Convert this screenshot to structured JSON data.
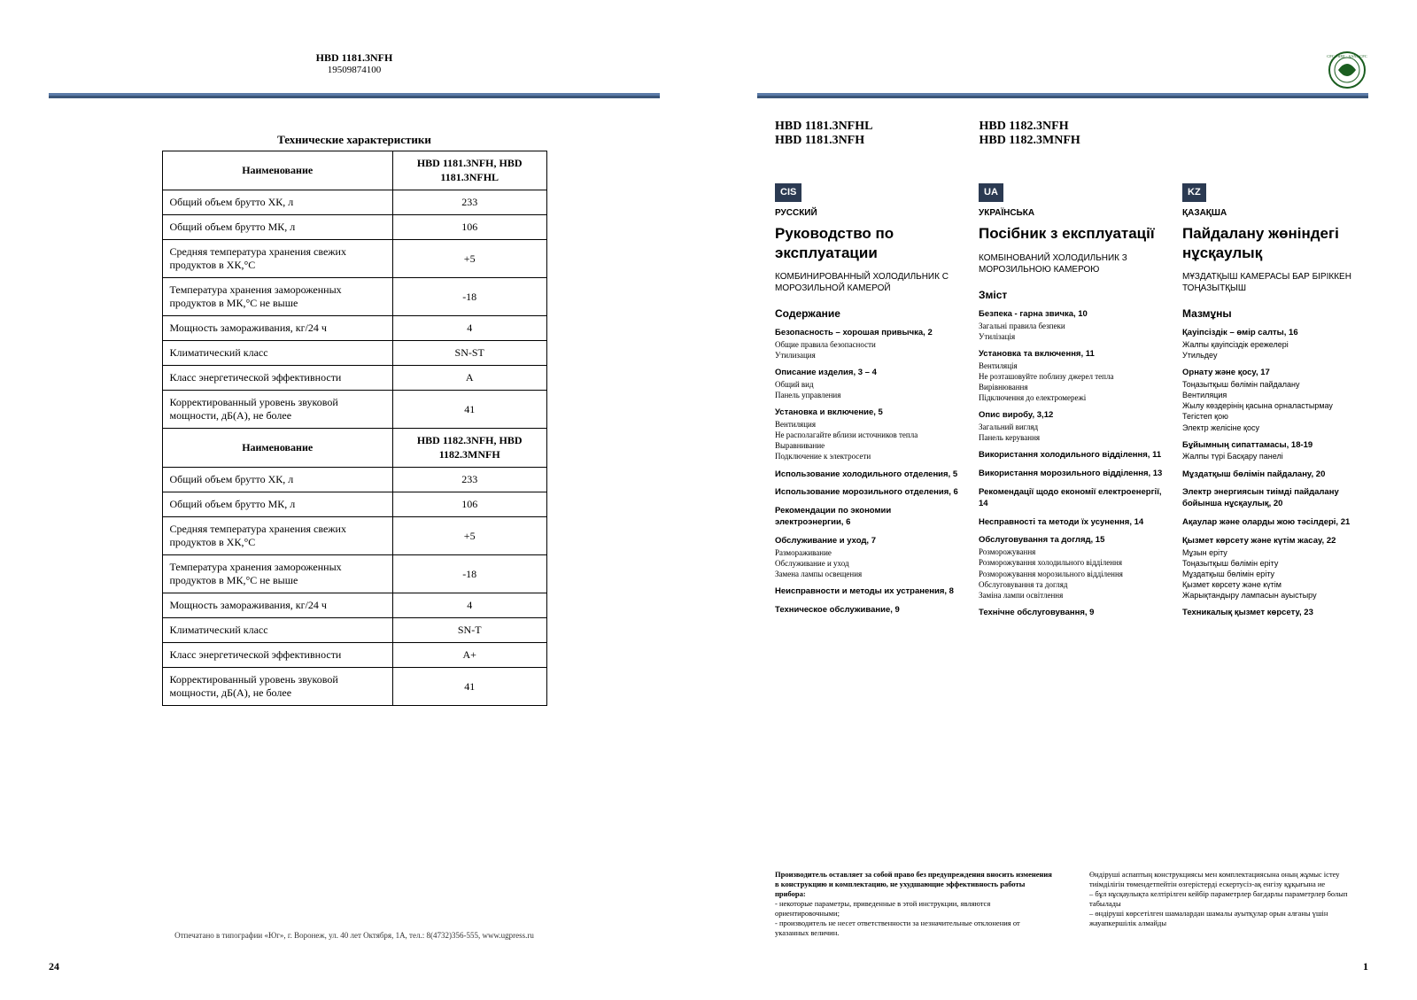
{
  "left": {
    "header_model": "HBD 1181.3NFH",
    "header_code": "19509874100",
    "spec_title": "Технические характеристики",
    "col_name": "Наименование",
    "model1": "HBD 1181.3NFH,\nHBD 1181.3NFHL",
    "model2": "HBD 1182.3NFH,\nHBD 1182.3MNFH",
    "rows1": [
      {
        "label": "Общий объем брутто ХК, л",
        "val": "233"
      },
      {
        "label": "Общий объем брутто МК, л",
        "val": "106"
      },
      {
        "label": "Средняя температура хранения свежих продуктов в ХК,°С",
        "val": "+5"
      },
      {
        "label": "Температура хранения замороженных продуктов в МК,°С не выше",
        "val": "-18"
      },
      {
        "label": "Мощность замораживания, кг/24 ч",
        "val": "4"
      },
      {
        "label": "Климатический класс",
        "val": "SN-ST"
      },
      {
        "label": "Класс энергетической эффективности",
        "val": "A"
      },
      {
        "label": "Корректированный уровень звуковой мощности, дБ(А), не более",
        "val": "41"
      }
    ],
    "rows2": [
      {
        "label": "Общий объем брутто ХК, л",
        "val": "233"
      },
      {
        "label": "Общий объем брутто МК, л",
        "val": "106"
      },
      {
        "label": "Средняя температура хранения свежих продуктов в ХК,°С",
        "val": "+5"
      },
      {
        "label": "Температура хранения замороженных продуктов в МК,°С не выше",
        "val": "-18"
      },
      {
        "label": "Мощность замораживания, кг/24 ч",
        "val": "4"
      },
      {
        "label": "Климатический класс",
        "val": "SN-T"
      },
      {
        "label": "Класс энергетической эффективности",
        "val": "A+"
      },
      {
        "label": "Корректированный уровень звуковой мощности, дБ(А), не более",
        "val": "41"
      }
    ],
    "footnote": "Отпечатано в типографии «Юг», г. Воронеж, ул. 40 лет Октября, 1А, тел.: 8(4732)356-555, www.ugpress.ru",
    "pagenum": "24"
  },
  "right": {
    "title_left": "HBD 1181.3NFHL\nHBD 1181.3NFH",
    "title_right": "HBD 1182.3NFH\nHBD 1182.3MNFH",
    "langs": [
      {
        "code": "CIS",
        "name": "РУССКИЙ",
        "title": "Руководство по эксплуатации",
        "desc": "КОМБИНИРОВАННЫЙ ХОЛОДИЛЬНИК С МОРОЗИЛЬНОЙ КАМЕРОЙ",
        "toc_head": "Содержание",
        "sections": [
          {
            "title": "Безопасность – хорошая привычка, 2",
            "items": [
              "Общие правила безопасности",
              "Утилизация"
            ]
          },
          {
            "title": "Описание изделия, 3 – 4",
            "items": [
              "Общий вид",
              "Панель управления"
            ]
          },
          {
            "title": "Установка и включение, 5",
            "items": [
              "Вентиляция",
              "Не располагайте вблизи источников тепла",
              "Выравнивание",
              "Подключение к электросети"
            ]
          },
          {
            "title": "Использование холодильного отделения, 5",
            "items": []
          },
          {
            "title": "Использование морозильного отделения, 6",
            "items": []
          },
          {
            "title": "Рекомендации по экономии электроэнергии, 6",
            "items": []
          },
          {
            "title": "Обслуживание и уход, 7",
            "items": [
              "Размораживание",
              "Обслуживание и уход",
              "Замена лампы освещения"
            ]
          },
          {
            "title": "Неисправности и методы их устранения, 8",
            "items": []
          },
          {
            "title": "Техническое обслуживание, 9",
            "items": []
          }
        ]
      },
      {
        "code": "UA",
        "name": "УКРАЇНСЬКА",
        "title": "Посібник з експлуатації",
        "desc": "КОМБІНОВАНИЙ ХОЛОДИЛЬНИК З МОРОЗИЛЬНОЮ КАМЕРОЮ",
        "toc_head": "Зміст",
        "sections": [
          {
            "title": "Безпека - гарна звичка, 10",
            "items": [
              "Загальні правила безпеки",
              "Утилізація"
            ]
          },
          {
            "title": "Установка та включення, 11",
            "items": [
              "Вентиляція",
              "Не розташовуйте поблизу джерел тепла",
              "Вирівнювання",
              "Підключення до електромережі"
            ]
          },
          {
            "title": "Опис виробу, 3,12",
            "items": [
              "Загальний вигляд",
              "Панель керування"
            ]
          },
          {
            "title": "Використання холодильного відділення, 11",
            "items": []
          },
          {
            "title": "Використання морозильного відділення, 13",
            "items": []
          },
          {
            "title": "Рекомендації щодо економії електроенергії, 14",
            "items": []
          },
          {
            "title": "Несправності та методи їх усунення, 14",
            "items": []
          },
          {
            "title": "Обслуговування та догляд, 15",
            "items": [
              "Розморожування",
              "Розморожування холодильного відділення",
              "Розморожування морозильного відділення",
              "Обслуговування та догляд",
              "Заміна лампи освітлення"
            ]
          },
          {
            "title": "Технічне обслуговування, 9",
            "items": []
          }
        ]
      },
      {
        "code": "KZ",
        "name": "ҚАЗАҚША",
        "title": "Пайдалану жөніндегі нұсқаулық",
        "desc": "МҰЗДАТҚЫШ КАМЕРАСЫ БАР БІРІККЕН ТОҢАЗЫТҚЫШ",
        "toc_head": "Мазмұны",
        "sections": [
          {
            "title": "Қауіпсіздік – өмір салты, 16",
            "items": [
              "Жалпы қауіпсіздік ережелері",
              "Утильдеу"
            ]
          },
          {
            "title": "Орнату және қосу, 17",
            "items": [
              "Тоңазытқыш бөлімін пайдалану",
              "Вентиляция",
              "Жылу көздерінің қасына орналастырмау",
              "Тегістеп қою",
              "Электр желісіне қосу"
            ]
          },
          {
            "title": "Бұйымның сипаттамасы, 18-19",
            "items": [
              "Жалпы түрі Басқару панелі"
            ]
          },
          {
            "title": "Мұздатқыш бөлімін пайдалану, 20",
            "items": []
          },
          {
            "title": "Электр энергиясын тиімді пайдалану бойынша нұсқаулық, 20",
            "items": []
          },
          {
            "title": "Ақаулар және оларды жою тәсілдері, 21",
            "items": []
          },
          {
            "title": "Қызмет көрсету және күтім жасау, 22",
            "items": [
              "Мұзын еріту",
              "Тоңазытқыш бөлімін еріту",
              "Мұздатқыш бөлімін еріту",
              "Қызмет көрсету және күтім",
              "Жарықтандыру лампасын ауыстыру"
            ]
          },
          {
            "title": "Техникалық қызмет көрсету, 23",
            "items": []
          }
        ]
      }
    ],
    "footer_ru_bold": "Производитель оставляет за собой право без предупреждения вносить изменения в конструкцию и комплектацию, не ухудшающие эффективность работы прибора:",
    "footer_ru_lines": [
      "- некоторые параметры, приведенные в этой инструкции, являются ориентировочными;",
      "- производитель не несет ответственности за незначительные отклонения от указанных величин."
    ],
    "footer_kz_lines": [
      "Өндіруші аспаптың конструкциясы мен комплектациясына оның жұмыс істеу тиімділігін төмендетпейтін өзгерістерді ескертусіз-ақ енгізу құқығына ие",
      "– бұл нұсқаулықта келтірілген кейбір параметрлер бағдарлы параметрлер болып табылады",
      "– өндіруші көрсетілген шамалардан шамалы ауытқулар орын алғаны үшін жауапкершілік алмайды"
    ],
    "pagenum": "1"
  }
}
